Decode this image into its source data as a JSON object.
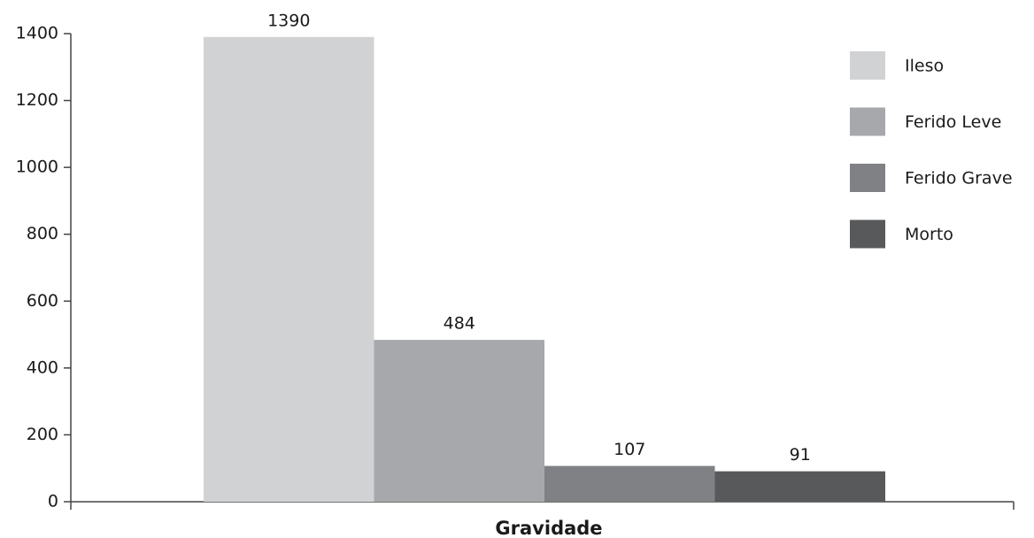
{
  "chart_data": {
    "type": "bar",
    "xlabel": "Gravidade",
    "series": [
      {
        "name": "Ileso",
        "color": "#d1d2d4",
        "values": [
          1390
        ]
      },
      {
        "name": "Ferido Leve",
        "color": "#a7a8ab",
        "values": [
          484
        ]
      },
      {
        "name": "Ferido Grave",
        "color": "#808184",
        "values": [
          107
        ]
      },
      {
        "name": "Morto",
        "color": "#58595b",
        "values": [
          91
        ]
      }
    ],
    "ylim": [
      0,
      1400
    ],
    "yticks": [
      0,
      200,
      400,
      600,
      800,
      1000,
      1200,
      1400
    ],
    "grid": false,
    "legend": "right"
  }
}
